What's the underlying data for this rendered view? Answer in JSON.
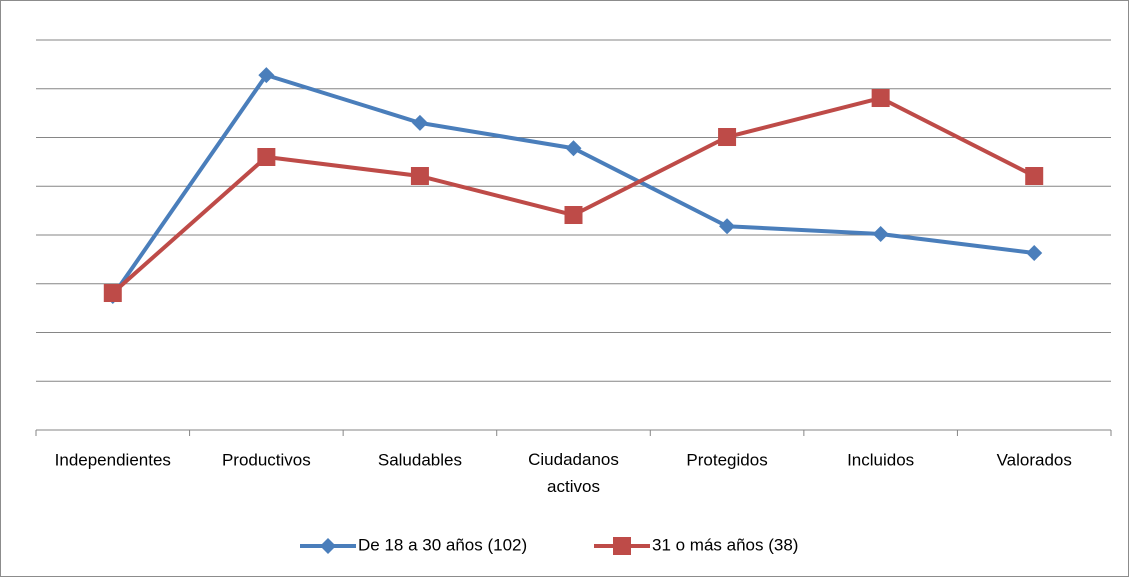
{
  "chart_data": {
    "type": "line",
    "categories": [
      "Independientes",
      "Productivos",
      "Saludables",
      "Ciudadanos activos",
      "Protegidos",
      "Incluidos",
      "Valorados"
    ],
    "series": [
      {
        "name": "De 18 a 30 años (102)",
        "color": "#4a7ebb",
        "marker": "diamond",
        "values": [
          2.75,
          7.28,
          6.3,
          5.78,
          4.18,
          4.02,
          3.63
        ]
      },
      {
        "name": "31 o más años (38)",
        "color": "#be4b48",
        "marker": "square",
        "values": [
          2.81,
          5.6,
          5.21,
          4.41,
          6.01,
          6.81,
          5.21
        ]
      }
    ],
    "ylim": [
      0,
      8
    ],
    "yticks": [
      0,
      1,
      2,
      3,
      4,
      5,
      6,
      7,
      8
    ],
    "grid": true,
    "legend": "bottom"
  }
}
